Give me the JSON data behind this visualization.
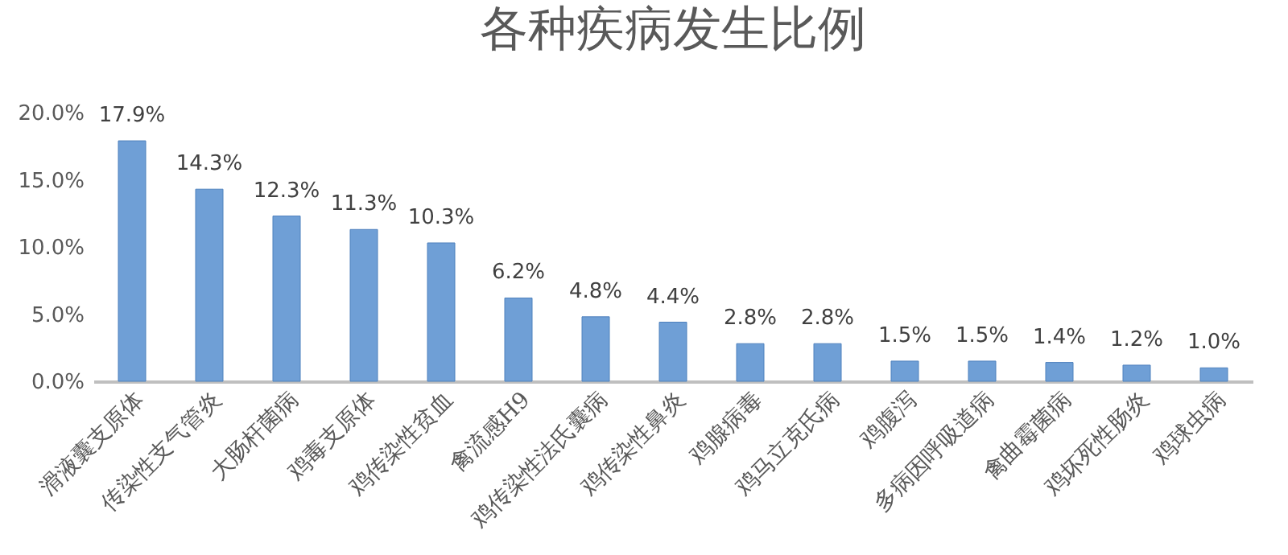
{
  "chart_data": {
    "type": "bar",
    "title": "各种疾病发生比例",
    "categories": [
      "滑液囊支原体",
      "传染性支气管炎",
      "大肠杆菌病",
      "鸡毒支原体",
      "鸡传染性贫血",
      "禽流感H9",
      "鸡传染性法氏囊病",
      "鸡传染性鼻炎",
      "鸡腺病毒",
      "鸡马立克氏病",
      "鸡腹泻",
      "多病因呼吸道病",
      "禽曲霉菌病",
      "鸡坏死性肠炎",
      "鸡球虫病"
    ],
    "values": [
      17.9,
      14.3,
      12.3,
      11.3,
      10.3,
      6.2,
      4.8,
      4.4,
      2.8,
      2.8,
      1.5,
      1.5,
      1.4,
      1.2,
      1.0
    ],
    "value_labels": [
      "17.9%",
      "14.3%",
      "12.3%",
      "11.3%",
      "10.3%",
      "6.2%",
      "4.8%",
      "4.4%",
      "2.8%",
      "2.8%",
      "1.5%",
      "1.5%",
      "1.4%",
      "1.2%",
      "1.0%"
    ],
    "color": "#6f9fd6",
    "ylim": [
      0,
      20
    ],
    "yticks": [
      {
        "value": 0,
        "label": "0.0%"
      },
      {
        "value": 5,
        "label": "5.0%"
      },
      {
        "value": 10,
        "label": "10.0%"
      },
      {
        "value": 15,
        "label": "15.0%"
      },
      {
        "value": 20,
        "label": "20.0%"
      }
    ],
    "grid": false
  }
}
